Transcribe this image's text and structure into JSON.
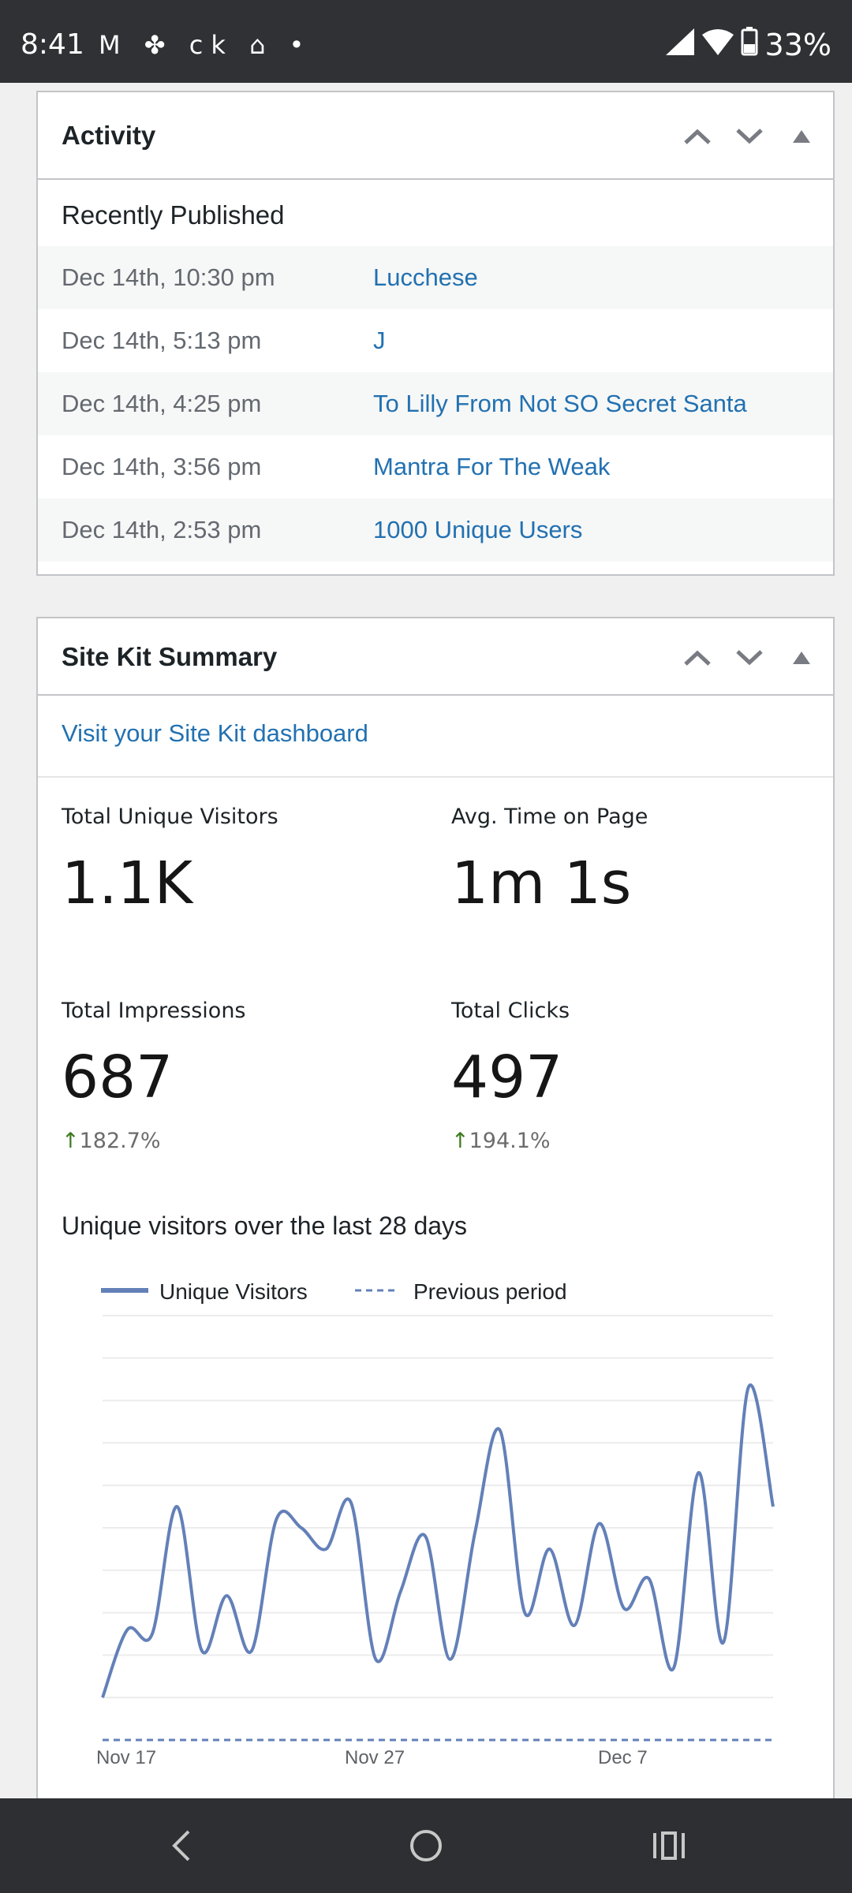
{
  "status_bar": {
    "time": "8:41",
    "notification_icons": [
      "gmail-icon",
      "pinwheel-icon",
      "ck-icon",
      "home-icon",
      "dot-icon"
    ],
    "notif_text": "ck",
    "battery": "33%"
  },
  "activity": {
    "title": "Activity",
    "section": "Recently Published",
    "items": [
      {
        "date": "Dec 14th, 10:30 pm",
        "title": "Lucchese"
      },
      {
        "date": "Dec 14th, 5:13 pm",
        "title": "J"
      },
      {
        "date": "Dec 14th, 4:25 pm",
        "title": "To Lilly From Not SO Secret Santa"
      },
      {
        "date": "Dec 14th, 3:56 pm",
        "title": "Mantra For The Weak"
      },
      {
        "date": "Dec 14th, 2:53 pm",
        "title": "1000 Unique Users"
      }
    ]
  },
  "sitekit": {
    "title": "Site Kit Summary",
    "dashboard_link": "Visit your Site Kit dashboard",
    "metrics": [
      {
        "label": "Total Unique Visitors",
        "value": "1.1K"
      },
      {
        "label": "Avg. Time on Page",
        "value": "1m 1s"
      },
      {
        "label": "Total Impressions",
        "value": "687",
        "change": "182.7%"
      },
      {
        "label": "Total Clicks",
        "value": "497",
        "change": "194.1%"
      }
    ],
    "chart_title": "Unique visitors over the last 28 days"
  },
  "chart_data": {
    "type": "line",
    "title": "Unique visitors over the last 28 days",
    "x_ticks": [
      "Nov 17",
      "Nov 27",
      "Dec 7"
    ],
    "series": [
      {
        "name": "Unique Visitors",
        "color": "#6380b8",
        "style": "solid",
        "values": [
          10,
          26,
          25,
          55,
          21,
          34,
          21,
          52,
          50,
          45,
          56,
          19,
          35,
          48,
          19,
          49,
          73,
          30,
          45,
          27,
          51,
          31,
          38,
          17,
          63,
          23,
          83,
          55
        ]
      },
      {
        "name": "Previous period",
        "color": "#6380b8",
        "style": "dashed",
        "values": [
          0,
          0,
          0,
          0,
          0,
          0,
          0,
          0,
          0,
          0,
          0,
          0,
          0,
          0,
          0,
          0,
          0,
          0,
          0,
          0,
          0,
          0,
          0,
          0,
          0,
          0,
          0,
          0
        ]
      }
    ],
    "ylim": [
      0,
      100
    ],
    "grid": true,
    "legend": "top-left"
  },
  "colors": {
    "link": "#2271b1",
    "positive": "#3d7a1e",
    "series": "#6380b8"
  }
}
